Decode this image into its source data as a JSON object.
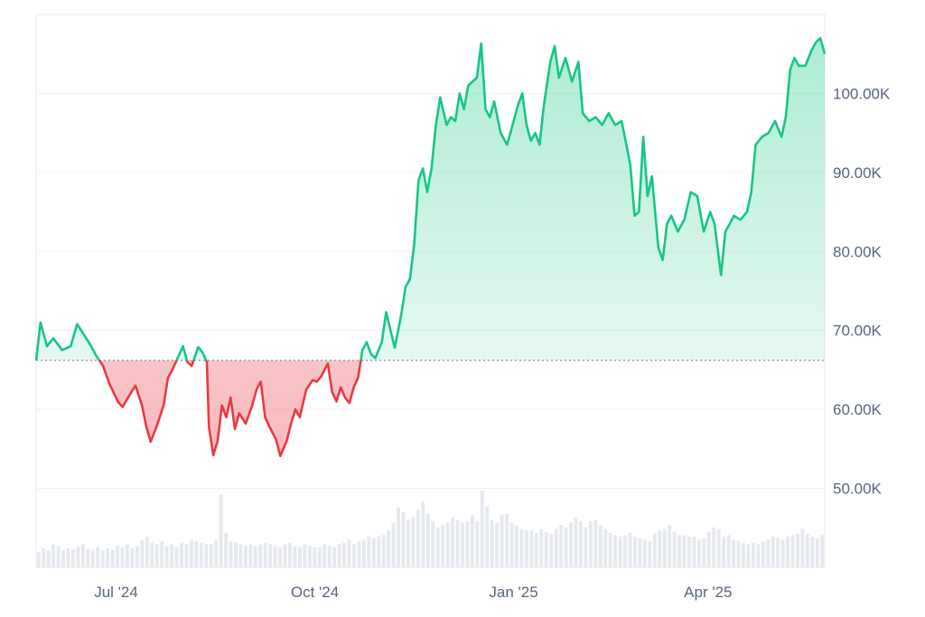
{
  "chart_data": {
    "type": "area",
    "baseline": 66200,
    "ylim": [
      40000,
      110000
    ],
    "y_ticks": [
      {
        "value": 50000,
        "label": "50.00K"
      },
      {
        "value": 60000,
        "label": "60.00K"
      },
      {
        "value": 70000,
        "label": "70.00K"
      },
      {
        "value": 80000,
        "label": "80.00K"
      },
      {
        "value": 90000,
        "label": "90.00K"
      },
      {
        "value": 100000,
        "label": "100.00K"
      }
    ],
    "x_ticks": [
      {
        "date": "2024-07-01",
        "label": "Jul '24"
      },
      {
        "date": "2024-10-01",
        "label": "Oct '24"
      },
      {
        "date": "2025-01-01",
        "label": "Jan '25"
      },
      {
        "date": "2025-04-01",
        "label": "Apr '25"
      }
    ],
    "xlim": [
      "2024-05-25",
      "2025-05-25"
    ],
    "series": [
      {
        "type": "price",
        "points": [
          [
            "2024-05-25",
            66200
          ],
          [
            "2024-05-27",
            71000
          ],
          [
            "2024-05-30",
            68000
          ],
          [
            "2024-06-02",
            69000
          ],
          [
            "2024-06-06",
            67500
          ],
          [
            "2024-06-10",
            68000
          ],
          [
            "2024-06-13",
            70800
          ],
          [
            "2024-06-16",
            69500
          ],
          [
            "2024-06-19",
            68200
          ],
          [
            "2024-06-22",
            66700
          ],
          [
            "2024-06-25",
            65500
          ],
          [
            "2024-06-28",
            63200
          ],
          [
            "2024-07-02",
            60900
          ],
          [
            "2024-07-04",
            60300
          ],
          [
            "2024-07-07",
            61700
          ],
          [
            "2024-07-10",
            63000
          ],
          [
            "2024-07-13",
            60500
          ],
          [
            "2024-07-15",
            57800
          ],
          [
            "2024-07-17",
            55900
          ],
          [
            "2024-07-20",
            58000
          ],
          [
            "2024-07-23",
            60500
          ],
          [
            "2024-07-25",
            64000
          ],
          [
            "2024-07-27",
            65000
          ],
          [
            "2024-07-29",
            66200
          ],
          [
            "2024-08-01",
            68000
          ],
          [
            "2024-08-03",
            66000
          ],
          [
            "2024-08-05",
            65500
          ],
          [
            "2024-08-08",
            67900
          ],
          [
            "2024-08-10",
            67200
          ],
          [
            "2024-08-12",
            66000
          ],
          [
            "2024-08-13",
            57800
          ],
          [
            "2024-08-15",
            54200
          ],
          [
            "2024-08-17",
            56000
          ],
          [
            "2024-08-19",
            60500
          ],
          [
            "2024-08-21",
            59000
          ],
          [
            "2024-08-23",
            61500
          ],
          [
            "2024-08-25",
            57500
          ],
          [
            "2024-08-27",
            59500
          ],
          [
            "2024-08-30",
            58200
          ],
          [
            "2024-09-02",
            60500
          ],
          [
            "2024-09-04",
            62500
          ],
          [
            "2024-09-06",
            63500
          ],
          [
            "2024-09-08",
            59000
          ],
          [
            "2024-09-10",
            57800
          ],
          [
            "2024-09-13",
            56200
          ],
          [
            "2024-09-15",
            54100
          ],
          [
            "2024-09-18",
            56000
          ],
          [
            "2024-09-20",
            58200
          ],
          [
            "2024-09-22",
            60000
          ],
          [
            "2024-09-24",
            59000
          ],
          [
            "2024-09-27",
            62500
          ],
          [
            "2024-09-30",
            63700
          ],
          [
            "2024-10-02",
            63500
          ],
          [
            "2024-10-04",
            64200
          ],
          [
            "2024-10-07",
            65800
          ],
          [
            "2024-10-09",
            62200
          ],
          [
            "2024-10-11",
            61000
          ],
          [
            "2024-10-13",
            62800
          ],
          [
            "2024-10-15",
            61500
          ],
          [
            "2024-10-17",
            60800
          ],
          [
            "2024-10-19",
            62800
          ],
          [
            "2024-10-21",
            64000
          ],
          [
            "2024-10-23",
            67500
          ],
          [
            "2024-10-25",
            68500
          ],
          [
            "2024-10-27",
            67000
          ],
          [
            "2024-10-29",
            66500
          ],
          [
            "2024-11-01",
            68500
          ],
          [
            "2024-11-03",
            72300
          ],
          [
            "2024-11-05",
            70000
          ],
          [
            "2024-11-07",
            67800
          ],
          [
            "2024-11-10",
            72000
          ],
          [
            "2024-11-12",
            75500
          ],
          [
            "2024-11-14",
            76500
          ],
          [
            "2024-11-16",
            81000
          ],
          [
            "2024-11-18",
            89000
          ],
          [
            "2024-11-20",
            90500
          ],
          [
            "2024-11-22",
            87500
          ],
          [
            "2024-11-24",
            90500
          ],
          [
            "2024-11-26",
            96000
          ],
          [
            "2024-11-28",
            99500
          ],
          [
            "2024-12-01",
            96000
          ],
          [
            "2024-12-03",
            97000
          ],
          [
            "2024-12-05",
            96500
          ],
          [
            "2024-12-07",
            100000
          ],
          [
            "2024-12-09",
            98000
          ],
          [
            "2024-12-11",
            101000
          ],
          [
            "2024-12-13",
            101500
          ],
          [
            "2024-12-15",
            102000
          ],
          [
            "2024-12-17",
            106300
          ],
          [
            "2024-12-19",
            98000
          ],
          [
            "2024-12-21",
            97000
          ],
          [
            "2024-12-23",
            99000
          ],
          [
            "2024-12-26",
            95000
          ],
          [
            "2024-12-29",
            93500
          ],
          [
            "2025-01-01",
            96500
          ],
          [
            "2025-01-03",
            98500
          ],
          [
            "2025-01-05",
            100000
          ],
          [
            "2025-01-07",
            96000
          ],
          [
            "2025-01-09",
            94000
          ],
          [
            "2025-01-11",
            95000
          ],
          [
            "2025-01-13",
            93500
          ],
          [
            "2025-01-15",
            98500
          ],
          [
            "2025-01-18",
            104000
          ],
          [
            "2025-01-20",
            106000
          ],
          [
            "2025-01-22",
            102000
          ],
          [
            "2025-01-25",
            104500
          ],
          [
            "2025-01-28",
            101500
          ],
          [
            "2025-01-31",
            104000
          ],
          [
            "2025-02-02",
            97500
          ],
          [
            "2025-02-05",
            96500
          ],
          [
            "2025-02-08",
            97000
          ],
          [
            "2025-02-11",
            96000
          ],
          [
            "2025-02-14",
            97500
          ],
          [
            "2025-02-17",
            96000
          ],
          [
            "2025-02-20",
            96500
          ],
          [
            "2025-02-24",
            91000
          ],
          [
            "2025-02-26",
            84500
          ],
          [
            "2025-02-28",
            85000
          ],
          [
            "2025-03-02",
            94500
          ],
          [
            "2025-03-04",
            87000
          ],
          [
            "2025-03-06",
            89500
          ],
          [
            "2025-03-09",
            80500
          ],
          [
            "2025-03-11",
            78900
          ],
          [
            "2025-03-13",
            83500
          ],
          [
            "2025-03-15",
            84500
          ],
          [
            "2025-03-18",
            82500
          ],
          [
            "2025-03-21",
            84000
          ],
          [
            "2025-03-24",
            87500
          ],
          [
            "2025-03-27",
            87000
          ],
          [
            "2025-03-30",
            82500
          ],
          [
            "2025-04-02",
            85000
          ],
          [
            "2025-04-04",
            83500
          ],
          [
            "2025-04-07",
            77000
          ],
          [
            "2025-04-09",
            82500
          ],
          [
            "2025-04-11",
            83500
          ],
          [
            "2025-04-13",
            84500
          ],
          [
            "2025-04-16",
            84000
          ],
          [
            "2025-04-19",
            85000
          ],
          [
            "2025-04-21",
            87500
          ],
          [
            "2025-04-23",
            93500
          ],
          [
            "2025-04-26",
            94500
          ],
          [
            "2025-04-29",
            95000
          ],
          [
            "2025-05-02",
            96500
          ],
          [
            "2025-05-05",
            94500
          ],
          [
            "2025-05-07",
            97000
          ],
          [
            "2025-05-09",
            103000
          ],
          [
            "2025-05-11",
            104500
          ],
          [
            "2025-05-13",
            103500
          ],
          [
            "2025-05-16",
            103500
          ],
          [
            "2025-05-19",
            105500
          ],
          [
            "2025-05-21",
            106500
          ],
          [
            "2025-05-23",
            107000
          ],
          [
            "2025-05-25",
            105000
          ]
        ]
      },
      {
        "type": "volume",
        "relative_values": [
          0.2,
          0.25,
          0.22,
          0.3,
          0.28,
          0.22,
          0.25,
          0.24,
          0.27,
          0.3,
          0.24,
          0.22,
          0.26,
          0.22,
          0.25,
          0.23,
          0.28,
          0.26,
          0.3,
          0.25,
          0.28,
          0.35,
          0.4,
          0.32,
          0.3,
          0.34,
          0.28,
          0.3,
          0.26,
          0.32,
          0.3,
          0.36,
          0.34,
          0.32,
          0.3,
          0.3,
          0.35,
          0.95,
          0.45,
          0.34,
          0.32,
          0.3,
          0.28,
          0.3,
          0.28,
          0.3,
          0.32,
          0.3,
          0.28,
          0.26,
          0.3,
          0.32,
          0.28,
          0.26,
          0.3,
          0.28,
          0.26,
          0.26,
          0.3,
          0.28,
          0.26,
          0.3,
          0.32,
          0.36,
          0.3,
          0.34,
          0.36,
          0.4,
          0.38,
          0.4,
          0.42,
          0.48,
          0.58,
          0.78,
          0.72,
          0.62,
          0.65,
          0.75,
          0.85,
          0.7,
          0.6,
          0.52,
          0.55,
          0.58,
          0.65,
          0.62,
          0.58,
          0.6,
          0.68,
          0.6,
          1.0,
          0.8,
          0.62,
          0.58,
          0.68,
          0.7,
          0.58,
          0.54,
          0.5,
          0.48,
          0.48,
          0.45,
          0.5,
          0.46,
          0.44,
          0.5,
          0.55,
          0.52,
          0.58,
          0.65,
          0.6,
          0.52,
          0.6,
          0.62,
          0.55,
          0.5,
          0.45,
          0.42,
          0.4,
          0.42,
          0.45,
          0.4,
          0.38,
          0.36,
          0.34,
          0.44,
          0.48,
          0.5,
          0.55,
          0.46,
          0.42,
          0.42,
          0.4,
          0.4,
          0.36,
          0.38,
          0.46,
          0.52,
          0.5,
          0.4,
          0.42,
          0.36,
          0.34,
          0.32,
          0.3,
          0.32,
          0.3,
          0.34,
          0.36,
          0.4,
          0.38,
          0.36,
          0.4,
          0.42,
          0.44,
          0.5,
          0.44,
          0.4,
          0.38,
          0.42
        ]
      }
    ]
  }
}
